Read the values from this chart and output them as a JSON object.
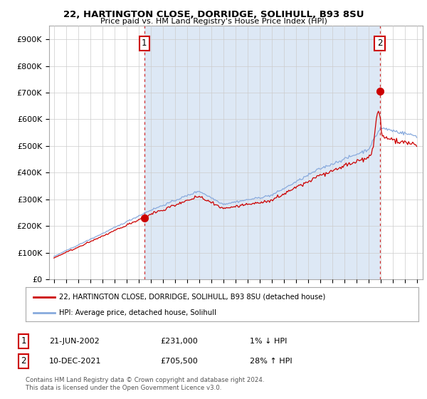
{
  "title_line1": "22, HARTINGTON CLOSE, DORRIDGE, SOLIHULL, B93 8SU",
  "title_line2": "Price paid vs. HM Land Registry's House Price Index (HPI)",
  "ylabel_ticks": [
    "£0",
    "£100K",
    "£200K",
    "£300K",
    "£400K",
    "£500K",
    "£600K",
    "£700K",
    "£800K",
    "£900K"
  ],
  "ytick_values": [
    0,
    100000,
    200000,
    300000,
    400000,
    500000,
    600000,
    700000,
    800000,
    900000
  ],
  "sale1_year": 2002.47,
  "sale1_price": 231000,
  "sale2_year": 2021.94,
  "sale2_price": 705500,
  "property_line_color": "#cc0000",
  "hpi_line_color": "#88aadd",
  "shade_color": "#dde8f5",
  "legend_label1": "22, HARTINGTON CLOSE, DORRIDGE, SOLIHULL, B93 8SU (detached house)",
  "legend_label2": "HPI: Average price, detached house, Solihull",
  "annotation1_label": "1",
  "annotation2_label": "2",
  "table_row1": [
    "1",
    "21-JUN-2002",
    "£231,000",
    "1% ↓ HPI"
  ],
  "table_row2": [
    "2",
    "10-DEC-2021",
    "£705,500",
    "28% ↑ HPI"
  ],
  "footnote": "Contains HM Land Registry data © Crown copyright and database right 2024.\nThis data is licensed under the Open Government Licence v3.0.",
  "background_color": "#ffffff",
  "grid_color": "#cccccc"
}
